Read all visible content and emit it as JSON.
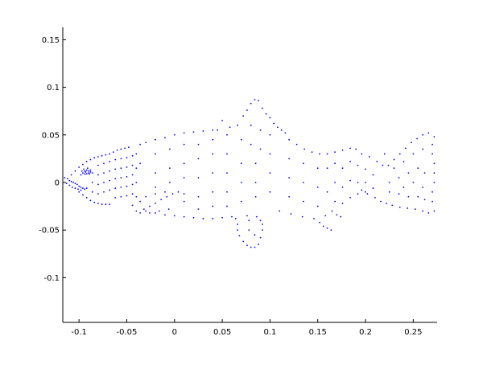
{
  "chart_data": {
    "type": "scatter",
    "title": "",
    "xlabel": "",
    "ylabel": "",
    "xlim": [
      -0.117,
      0.275
    ],
    "ylim": [
      -0.147,
      0.163
    ],
    "xticks": [
      -0.1,
      -0.05,
      0,
      0.05,
      0.1,
      0.15,
      0.2,
      0.25
    ],
    "xtick_labels": [
      "-0.1",
      "-0.05",
      "0",
      "0.05",
      "0.1",
      "0.15",
      "0.2",
      "0.25"
    ],
    "yticks": [
      0.15,
      0.1,
      0.05,
      0,
      -0.05,
      -0.1
    ],
    "ytick_labels": [
      "0.15",
      "0.1",
      "0.05",
      "0",
      "-0.05",
      "-0.1"
    ],
    "grid": false,
    "legend": "none",
    "marker_color": "#0000ff",
    "series": [
      {
        "points": [
          [
            -0.115,
            0.005
          ],
          [
            -0.112,
            0.004
          ],
          [
            -0.11,
            0.002
          ],
          [
            -0.108,
            0.001
          ],
          [
            -0.106,
            0.0
          ],
          [
            -0.104,
            -0.001
          ],
          [
            -0.102,
            -0.002
          ],
          [
            -0.1,
            -0.004
          ],
          [
            -0.098,
            -0.005
          ],
          [
            -0.096,
            -0.006
          ],
          [
            -0.094,
            -0.007
          ],
          [
            -0.092,
            -0.006
          ],
          [
            -0.113,
            -0.001
          ],
          [
            -0.11,
            -0.003
          ],
          [
            -0.107,
            -0.005
          ],
          [
            -0.104,
            -0.006
          ],
          [
            -0.101,
            -0.007
          ],
          [
            -0.098,
            -0.008
          ],
          [
            -0.108,
            0.008
          ],
          [
            -0.104,
            0.012
          ],
          [
            -0.1,
            0.016
          ],
          [
            -0.096,
            0.019
          ],
          [
            -0.092,
            0.022
          ],
          [
            -0.088,
            0.024
          ],
          [
            -0.084,
            0.026
          ],
          [
            -0.08,
            0.027
          ],
          [
            -0.076,
            0.028
          ],
          [
            -0.072,
            0.029
          ],
          [
            -0.068,
            0.03
          ],
          [
            -0.064,
            0.032
          ],
          [
            -0.06,
            0.034
          ],
          [
            -0.056,
            0.035
          ],
          [
            -0.052,
            0.036
          ],
          [
            -0.048,
            0.037
          ],
          [
            -0.094,
            0.012
          ],
          [
            -0.092,
            0.013
          ],
          [
            -0.09,
            0.012
          ],
          [
            -0.096,
            0.01
          ],
          [
            -0.094,
            0.009
          ],
          [
            -0.092,
            0.009
          ],
          [
            -0.09,
            0.01
          ],
          [
            -0.088,
            0.011
          ],
          [
            -0.095,
            0.014
          ],
          [
            -0.091,
            0.015
          ],
          [
            -0.088,
            0.013
          ],
          [
            -0.097,
            0.012
          ],
          [
            -0.093,
            0.011
          ],
          [
            -0.089,
            0.009
          ],
          [
            -0.098,
            0.008
          ],
          [
            -0.1,
            -0.01
          ],
          [
            -0.096,
            -0.013
          ],
          [
            -0.092,
            -0.016
          ],
          [
            -0.088,
            -0.019
          ],
          [
            -0.084,
            -0.021
          ],
          [
            -0.08,
            -0.022
          ],
          [
            -0.076,
            -0.023
          ],
          [
            -0.072,
            -0.023
          ],
          [
            -0.068,
            -0.023
          ],
          [
            -0.086,
            0.01
          ],
          [
            -0.086,
            0.0
          ],
          [
            -0.086,
            -0.01
          ],
          [
            -0.08,
            0.018
          ],
          [
            -0.08,
            0.008
          ],
          [
            -0.08,
            -0.002
          ],
          [
            -0.08,
            -0.012
          ],
          [
            -0.074,
            0.02
          ],
          [
            -0.074,
            0.01
          ],
          [
            -0.074,
            0.0
          ],
          [
            -0.074,
            -0.01
          ],
          [
            -0.068,
            0.022
          ],
          [
            -0.068,
            0.012
          ],
          [
            -0.068,
            0.002
          ],
          [
            -0.068,
            -0.008
          ],
          [
            -0.062,
            0.024
          ],
          [
            -0.062,
            0.014
          ],
          [
            -0.062,
            0.004
          ],
          [
            -0.062,
            -0.006
          ],
          [
            -0.062,
            -0.016
          ],
          [
            -0.056,
            0.025
          ],
          [
            -0.056,
            0.015
          ],
          [
            -0.056,
            0.005
          ],
          [
            -0.056,
            -0.005
          ],
          [
            -0.056,
            -0.015
          ],
          [
            -0.05,
            0.026
          ],
          [
            -0.05,
            0.016
          ],
          [
            -0.05,
            0.006
          ],
          [
            -0.05,
            -0.004
          ],
          [
            -0.05,
            -0.014
          ],
          [
            -0.044,
            0.028
          ],
          [
            -0.044,
            0.018
          ],
          [
            -0.044,
            0.008
          ],
          [
            -0.044,
            -0.002
          ],
          [
            -0.044,
            -0.012
          ],
          [
            -0.044,
            -0.024
          ],
          [
            -0.04,
            0.03
          ],
          [
            -0.04,
            0.015
          ],
          [
            -0.04,
            0.0
          ],
          [
            -0.04,
            -0.015
          ],
          [
            -0.04,
            -0.03
          ],
          [
            -0.036,
            0.04
          ],
          [
            -0.036,
            0.02
          ],
          [
            -0.036,
            -0.02
          ],
          [
            -0.036,
            -0.032
          ],
          [
            -0.03,
            0.042
          ],
          [
            -0.02,
            0.045
          ],
          [
            -0.01,
            0.047
          ],
          [
            0.0,
            0.05
          ],
          [
            0.01,
            0.052
          ],
          [
            0.02,
            0.053
          ],
          [
            0.03,
            0.054
          ],
          [
            0.04,
            0.055
          ],
          [
            0.045,
            0.055
          ],
          [
            -0.03,
            -0.03
          ],
          [
            -0.02,
            -0.032
          ],
          [
            -0.01,
            -0.034
          ],
          [
            0.0,
            -0.035
          ],
          [
            0.01,
            -0.036
          ],
          [
            0.02,
            -0.037
          ],
          [
            0.03,
            -0.038
          ],
          [
            0.04,
            -0.038
          ],
          [
            0.05,
            -0.037
          ],
          [
            0.06,
            -0.036
          ],
          [
            -0.032,
            -0.028
          ],
          [
            -0.026,
            -0.025
          ],
          [
            -0.02,
            -0.022
          ],
          [
            -0.014,
            -0.018
          ],
          [
            -0.008,
            -0.015
          ],
          [
            -0.002,
            -0.012
          ],
          [
            0.004,
            -0.01
          ],
          [
            0.01,
            -0.012
          ],
          [
            -0.03,
            -0.015
          ],
          [
            -0.02,
            -0.012
          ],
          [
            -0.01,
            -0.01
          ],
          [
            -0.026,
            -0.032
          ],
          [
            -0.016,
            -0.03
          ],
          [
            -0.006,
            -0.028
          ],
          [
            -0.02,
            0.03
          ],
          [
            -0.02,
            0.01
          ],
          [
            -0.02,
            -0.005
          ],
          [
            -0.005,
            0.035
          ],
          [
            -0.005,
            0.015
          ],
          [
            -0.005,
            0.0
          ],
          [
            0.01,
            0.04
          ],
          [
            0.01,
            0.02
          ],
          [
            0.01,
            0.005
          ],
          [
            0.01,
            -0.02
          ],
          [
            0.025,
            0.04
          ],
          [
            0.025,
            0.025
          ],
          [
            0.025,
            0.005
          ],
          [
            0.025,
            -0.015
          ],
          [
            0.025,
            -0.028
          ],
          [
            0.04,
            0.045
          ],
          [
            0.04,
            0.03
          ],
          [
            0.04,
            0.01
          ],
          [
            0.04,
            -0.01
          ],
          [
            0.04,
            -0.025
          ],
          [
            0.055,
            0.05
          ],
          [
            0.055,
            0.03
          ],
          [
            0.055,
            0.01
          ],
          [
            0.055,
            -0.01
          ],
          [
            0.055,
            -0.025
          ],
          [
            0.05,
            0.065
          ],
          [
            0.058,
            0.058
          ],
          [
            0.066,
            0.06
          ],
          [
            0.072,
            0.07
          ],
          [
            0.076,
            0.076
          ],
          [
            0.08,
            0.083
          ],
          [
            0.084,
            0.087
          ],
          [
            0.088,
            0.086
          ],
          [
            0.092,
            0.078
          ],
          [
            0.096,
            0.072
          ],
          [
            0.1,
            0.068
          ],
          [
            0.104,
            0.062
          ],
          [
            0.108,
            0.058
          ],
          [
            0.112,
            0.055
          ],
          [
            0.116,
            0.052
          ],
          [
            0.07,
            0.045
          ],
          [
            0.08,
            0.06
          ],
          [
            0.08,
            0.04
          ],
          [
            0.09,
            0.055
          ],
          [
            0.09,
            0.035
          ],
          [
            0.1,
            0.05
          ],
          [
            0.1,
            0.03
          ],
          [
            0.07,
            0.02
          ],
          [
            0.07,
            0.0
          ],
          [
            0.07,
            -0.02
          ],
          [
            0.085,
            0.02
          ],
          [
            0.085,
            0.0
          ],
          [
            0.085,
            -0.015
          ],
          [
            0.1,
            0.01
          ],
          [
            0.1,
            -0.01
          ],
          [
            0.12,
            0.045
          ],
          [
            0.128,
            0.04
          ],
          [
            0.136,
            0.035
          ],
          [
            0.144,
            0.032
          ],
          [
            0.152,
            0.03
          ],
          [
            0.16,
            0.03
          ],
          [
            0.168,
            0.032
          ],
          [
            0.176,
            0.034
          ],
          [
            0.184,
            0.036
          ],
          [
            0.19,
            0.035
          ],
          [
            0.12,
            0.025
          ],
          [
            0.12,
            0.005
          ],
          [
            0.12,
            -0.015
          ],
          [
            0.135,
            0.02
          ],
          [
            0.135,
            0.0
          ],
          [
            0.135,
            -0.02
          ],
          [
            0.15,
            0.015
          ],
          [
            0.15,
            -0.005
          ],
          [
            0.15,
            -0.025
          ],
          [
            0.11,
            -0.03
          ],
          [
            0.122,
            -0.033
          ],
          [
            0.134,
            -0.036
          ],
          [
            0.146,
            -0.038
          ],
          [
            0.064,
            -0.038
          ],
          [
            0.066,
            -0.044
          ],
          [
            0.066,
            -0.05
          ],
          [
            0.068,
            -0.056
          ],
          [
            0.072,
            -0.062
          ],
          [
            0.076,
            -0.066
          ],
          [
            0.08,
            -0.068
          ],
          [
            0.084,
            -0.068
          ],
          [
            0.088,
            -0.065
          ],
          [
            0.09,
            -0.058
          ],
          [
            0.092,
            -0.05
          ],
          [
            0.092,
            -0.044
          ],
          [
            0.09,
            -0.04
          ],
          [
            0.078,
            -0.04
          ],
          [
            0.078,
            -0.05
          ],
          [
            0.084,
            -0.055
          ],
          [
            0.076,
            -0.035
          ],
          [
            0.086,
            -0.036
          ],
          [
            0.152,
            -0.042
          ],
          [
            0.156,
            -0.046
          ],
          [
            0.16,
            -0.048
          ],
          [
            0.164,
            -0.05
          ],
          [
            0.158,
            -0.035
          ],
          [
            0.165,
            -0.03
          ],
          [
            0.17,
            -0.034
          ],
          [
            0.174,
            -0.036
          ],
          [
            0.16,
            0.015
          ],
          [
            0.16,
            -0.01
          ],
          [
            0.168,
            0.02
          ],
          [
            0.168,
            0.0
          ],
          [
            0.168,
            -0.02
          ],
          [
            0.176,
            0.015
          ],
          [
            0.176,
            -0.005
          ],
          [
            0.176,
            -0.022
          ],
          [
            0.184,
            0.022
          ],
          [
            0.184,
            0.002
          ],
          [
            0.184,
            -0.016
          ],
          [
            0.192,
            0.018
          ],
          [
            0.192,
            0.0
          ],
          [
            0.192,
            -0.012
          ],
          [
            0.2,
            0.014
          ],
          [
            0.2,
            0.0
          ],
          [
            0.2,
            -0.01
          ],
          [
            0.208,
            0.008
          ],
          [
            0.208,
            -0.006
          ],
          [
            0.196,
            0.03
          ],
          [
            0.204,
            0.027
          ],
          [
            0.212,
            0.022
          ],
          [
            0.218,
            0.018
          ],
          [
            0.224,
            0.018
          ],
          [
            0.23,
            0.024
          ],
          [
            0.236,
            0.03
          ],
          [
            0.242,
            0.036
          ],
          [
            0.248,
            0.042
          ],
          [
            0.254,
            0.046
          ],
          [
            0.26,
            0.05
          ],
          [
            0.266,
            0.052
          ],
          [
            0.272,
            0.048
          ],
          [
            0.196,
            -0.008
          ],
          [
            0.202,
            -0.012
          ],
          [
            0.21,
            -0.016
          ],
          [
            0.216,
            -0.02
          ],
          [
            0.222,
            -0.022
          ],
          [
            0.228,
            -0.024
          ],
          [
            0.236,
            -0.026
          ],
          [
            0.244,
            -0.027
          ],
          [
            0.252,
            -0.028
          ],
          [
            0.26,
            -0.03
          ],
          [
            0.266,
            -0.032
          ],
          [
            0.272,
            -0.03
          ],
          [
            0.27,
            0.04
          ],
          [
            0.27,
            0.03
          ],
          [
            0.272,
            0.02
          ],
          [
            0.272,
            0.01
          ],
          [
            0.272,
            0.0
          ],
          [
            0.27,
            -0.01
          ],
          [
            0.27,
            -0.02
          ],
          [
            0.22,
            0.03
          ],
          [
            0.23,
            0.015
          ],
          [
            0.24,
            0.022
          ],
          [
            0.25,
            0.03
          ],
          [
            0.26,
            0.035
          ],
          [
            0.225,
            0.0
          ],
          [
            0.235,
            0.005
          ],
          [
            0.245,
            0.01
          ],
          [
            0.255,
            0.015
          ],
          [
            0.262,
            0.01
          ],
          [
            0.225,
            -0.01
          ],
          [
            0.235,
            -0.012
          ],
          [
            0.245,
            -0.015
          ],
          [
            0.255,
            -0.015
          ],
          [
            0.262,
            -0.018
          ],
          [
            0.24,
            -0.005
          ],
          [
            0.25,
            0.0
          ],
          [
            0.26,
            -0.005
          ]
        ]
      }
    ]
  }
}
